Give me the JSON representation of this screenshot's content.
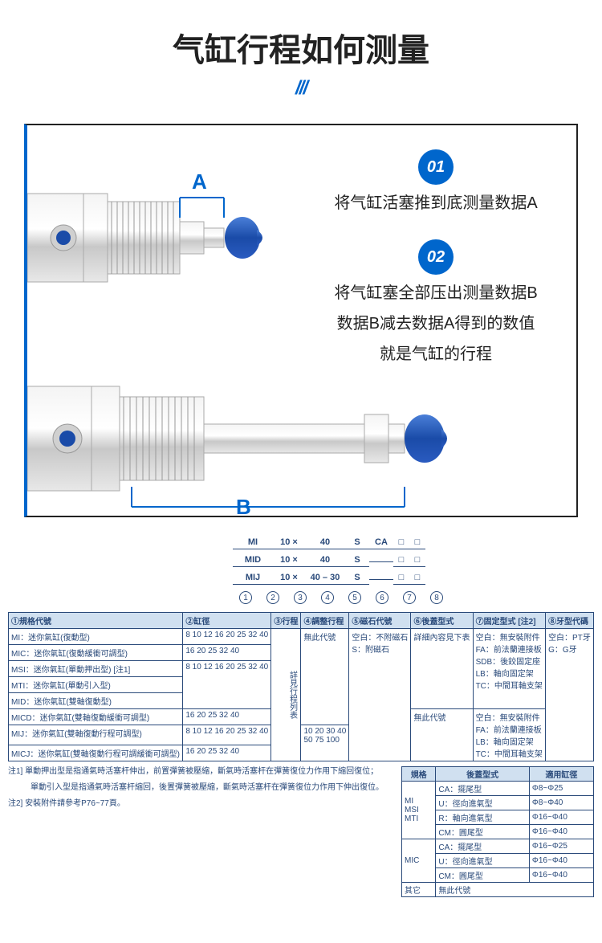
{
  "header": {
    "title": "气缸行程如何测量",
    "decoration": "///"
  },
  "steps": {
    "badge1": "01",
    "text1": "将气缸活塞推到底测量数据A",
    "badge2": "02",
    "text2a": "将气缸塞全部压出测量数据B",
    "text2b": "数据B减去数据A得到的数值",
    "text2c": "就是气缸的行程"
  },
  "dims": {
    "a": "A",
    "b": "B"
  },
  "model_examples": [
    [
      "MI",
      "10 ×",
      "40",
      "S",
      "CA",
      "□",
      "□"
    ],
    [
      "MID",
      "10 ×",
      "40",
      "S",
      "",
      "□",
      "□"
    ],
    [
      "MIJ",
      "10 ×",
      "40 – 30",
      "S",
      "",
      "□",
      "□"
    ]
  ],
  "numlabels": [
    "1",
    "2",
    "3",
    "4",
    "5",
    "6",
    "7",
    "8"
  ],
  "spec_headers": [
    "①規格代號",
    "②缸徑",
    "③行程",
    "④調整行程",
    "⑤磁石代號",
    "⑥後蓋型式",
    "⑦固定型式 [注2]",
    "⑧牙型代碼"
  ],
  "spec_rows": [
    {
      "c1": "MI：迷你氣缸(復動型)",
      "c2": "8 10 12 16 20 25 32 40"
    },
    {
      "c1": "MIC：迷你氣缸(復動緩衝可調型)",
      "c2": "16 20 25 32 40"
    },
    {
      "c1": "MSI：迷你氣缸(單動押出型) [注1]",
      "c2_rowspan": "8 10 12 16 20 25 32 40"
    },
    {
      "c1": "MTI：迷你氣缸(單動引入型)"
    },
    {
      "c1": "MID：迷你氣缸(雙軸復動型)"
    },
    {
      "c1": "MICD：迷你氣缸(雙軸復動緩衝可調型)",
      "c2": "16 20 25 32 40"
    },
    {
      "c1": "MIJ：迷你氣缸(雙軸復動行程可調型)",
      "c2": "8 10 12 16 20 25 32 40"
    },
    {
      "c1": "MICJ：迷你氣缸(雙軸復動行程可調緩衝可調型)",
      "c2": "16 20 25 32 40"
    }
  ],
  "col3": "詳見行程列表",
  "col4a": "無此代號",
  "col4b": "10 20 30 40\n50 75 100",
  "col5": "空白：不附磁石\nS：附磁石",
  "col6a": "詳細內容見下表",
  "col6b": "無此代號",
  "col7a": "空白：無安裝附件\nFA：前法蘭連接板\nSDB：後鉸固定座\nLB：軸向固定架\nTC：中間耳軸支架",
  "col7b": "空白：無安裝附件\nFA：前法蘭連接板\nLB：軸向固定架\nTC：中間耳軸支架",
  "col8": "空白：PT牙\nG：G牙",
  "notes": {
    "n1": "注1] 單動押出型是指通氣時活塞杆伸出，前置彈簧被壓縮，斷氣時活塞杆在彈簧復位力作用下縮回復位；",
    "n1b": "單動引入型是指通氣時活塞杆縮回，後置彈簧被壓縮，斷氣時活塞杆在彈簧復位力作用下伸出復位。",
    "n2": "注2] 安裝附件請參考P76~77頁。"
  },
  "mini_headers": [
    "規格",
    "後蓋型式",
    "適用缸徑"
  ],
  "mini_rows": [
    {
      "g": "MI\nMSI\nMTI",
      "t": "CA：擺尾型",
      "d": "Φ8~Φ25"
    },
    {
      "t": "U：徑向進氣型",
      "d": "Φ8~Φ40"
    },
    {
      "t": "R：軸向進氣型",
      "d": "Φ16~Φ40"
    },
    {
      "t": "CM：圓尾型",
      "d": "Φ16~Φ40"
    },
    {
      "g": "MIC",
      "t": "CA：擺尾型",
      "d": "Φ16~Φ25"
    },
    {
      "t": "U：徑向進氣型",
      "d": "Φ16~Φ40"
    },
    {
      "t": "CM：圓尾型",
      "d": "Φ16~Φ40"
    },
    {
      "g": "其它",
      "t": "無此代號",
      "d": ""
    }
  ],
  "colors": {
    "accent": "#0066cc",
    "table_border": "#2a4a7a",
    "table_header": "#d0e0f0"
  }
}
